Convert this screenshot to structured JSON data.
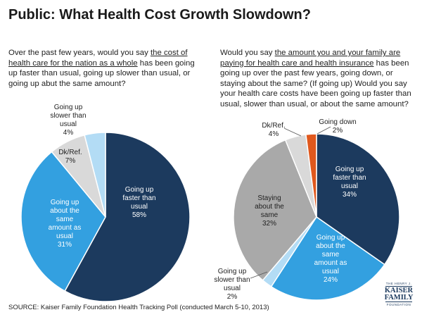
{
  "title": "Public: What Health Cost Growth Slowdown?",
  "left_question": {
    "pre": "Over the past few years, would you say ",
    "underlined": "the cost of health care for the nation as a whole",
    "post": " has been going up faster than usual, going up slower than usual, or going up abut the same amount?"
  },
  "right_question": {
    "pre": "Would you say ",
    "underlined": "the amount you and your family are paying for health care and health insurance",
    "post": " has been going up over the past few years, going down, or staying about the same? (If going up) Would you say your health care costs have been going up faster than usual, slower than usual, or about the same amount?"
  },
  "colors": {
    "navy": "#1c3a5e",
    "blue": "#33a0e0",
    "gray": "#a9a9a9",
    "light_gray": "#d9d9d9",
    "light_blue": "#b3dcf5",
    "orange": "#e0581d"
  },
  "chart_data": [
    {
      "type": "pie",
      "title": "Cost of health care for the nation as a whole",
      "slices": [
        {
          "label": "Going up faster than usual",
          "value": 58,
          "value_label": "58%",
          "color": "#1c3a5e"
        },
        {
          "label": "Going up about the same amount as usual",
          "value": 31,
          "value_label": "31%",
          "color": "#33a0e0"
        },
        {
          "label": "Dk/Ref.",
          "value": 7,
          "value_label": "7%",
          "color": "#d9d9d9"
        },
        {
          "label": "Going up slower than usual",
          "value": 4,
          "value_label": "4%",
          "color": "#b3dcf5"
        }
      ]
    },
    {
      "type": "pie",
      "title": "Amount you and your family are paying for health care and health insurance",
      "slices": [
        {
          "label": "Going up faster than usual",
          "value": 34,
          "value_label": "34%",
          "color": "#1c3a5e"
        },
        {
          "label": "Going up about the same amount as usual",
          "value": 24,
          "value_label": "24%",
          "color": "#33a0e0"
        },
        {
          "label": "Going up slower than usual",
          "value": 2,
          "value_label": "2%",
          "color": "#b3dcf5"
        },
        {
          "label": "Staying about the same",
          "value": 32,
          "value_label": "32%",
          "color": "#a9a9a9"
        },
        {
          "label": "Dk/Ref.",
          "value": 4,
          "value_label": "4%",
          "color": "#d9d9d9"
        },
        {
          "label": "Going down",
          "value": 2,
          "value_label": "2%",
          "color": "#e0581d"
        }
      ]
    }
  ],
  "source": "SOURCE: Kaiser Family Foundation Health Tracking Poll (conducted March 5-10, 2013)",
  "logo": {
    "small": "THE HENRY J.",
    "line1": "KAISER",
    "line2": "FAMILY",
    "small2": "FOUNDATION"
  }
}
